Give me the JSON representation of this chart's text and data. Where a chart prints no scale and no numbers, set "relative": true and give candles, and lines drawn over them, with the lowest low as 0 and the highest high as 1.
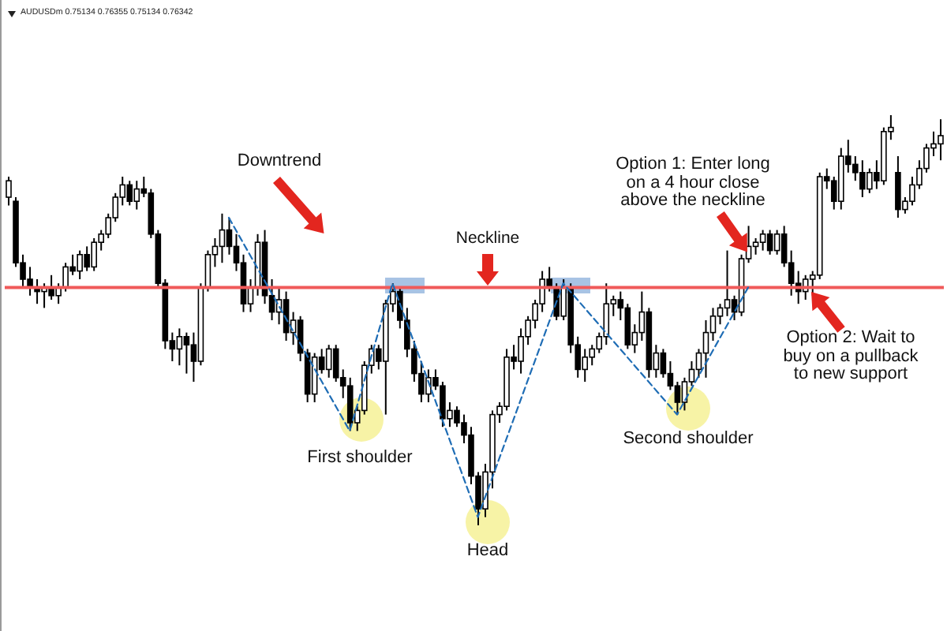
{
  "chart_data": {
    "type": "candlestick",
    "title": "AUDUSDm 0.75134 0.76355 0.75134 0.76342",
    "relative": true,
    "color": "#000000",
    "categories": [
      null,
      null,
      null,
      null,
      null,
      null,
      null,
      null,
      null,
      null,
      null,
      null,
      null,
      null,
      null,
      null,
      null,
      null,
      null,
      null,
      null,
      null,
      null,
      null,
      null,
      null,
      null,
      null,
      null,
      null,
      null,
      null,
      null,
      null,
      null,
      null,
      null,
      null,
      null,
      null,
      null,
      null,
      null,
      null,
      null,
      null,
      null,
      null,
      null,
      null,
      null,
      null,
      null,
      null,
      null,
      null,
      null,
      null,
      null,
      null,
      null,
      null,
      null,
      null,
      null,
      null,
      null,
      null,
      null,
      null,
      null,
      null,
      null,
      null,
      null,
      null,
      null,
      null,
      null,
      null,
      null,
      null,
      null,
      null,
      null,
      null,
      null,
      null,
      null,
      null,
      null,
      null,
      null,
      null,
      null,
      null,
      null,
      null,
      null,
      null,
      null,
      null,
      null,
      null,
      null,
      null,
      null,
      null,
      null,
      null,
      null,
      null,
      null,
      null,
      null,
      null,
      null,
      null,
      null,
      null,
      null,
      null,
      null,
      null,
      null,
      null,
      null,
      null,
      null,
      null,
      null,
      null
    ],
    "ohlc": [
      [
        0.8,
        0.85,
        0.78,
        0.84
      ],
      [
        0.79,
        0.8,
        0.63,
        0.64
      ],
      [
        0.64,
        0.66,
        0.58,
        0.6
      ],
      [
        0.6,
        0.63,
        0.56,
        0.58
      ],
      [
        0.58,
        0.6,
        0.54,
        0.57
      ],
      [
        0.57,
        0.59,
        0.53,
        0.58
      ],
      [
        0.58,
        0.61,
        0.55,
        0.56
      ],
      [
        0.56,
        0.59,
        0.54,
        0.58
      ],
      [
        0.58,
        0.64,
        0.57,
        0.63
      ],
      [
        0.63,
        0.66,
        0.61,
        0.62
      ],
      [
        0.62,
        0.67,
        0.6,
        0.66
      ],
      [
        0.66,
        0.68,
        0.62,
        0.63
      ],
      [
        0.63,
        0.7,
        0.62,
        0.69
      ],
      [
        0.69,
        0.72,
        0.67,
        0.71
      ],
      [
        0.71,
        0.76,
        0.7,
        0.75
      ],
      [
        0.75,
        0.81,
        0.74,
        0.8
      ],
      [
        0.8,
        0.85,
        0.78,
        0.83
      ],
      [
        0.83,
        0.84,
        0.78,
        0.79
      ],
      [
        0.79,
        0.84,
        0.77,
        0.82
      ],
      [
        0.82,
        0.85,
        0.8,
        0.81
      ],
      [
        0.81,
        0.82,
        0.7,
        0.71
      ],
      [
        0.71,
        0.72,
        0.58,
        0.59
      ],
      [
        0.59,
        0.6,
        0.43,
        0.45
      ],
      [
        0.45,
        0.47,
        0.4,
        0.43
      ],
      [
        0.43,
        0.48,
        0.39,
        0.46
      ],
      [
        0.46,
        0.47,
        0.37,
        0.44
      ],
      [
        0.44,
        0.47,
        0.35,
        0.4
      ],
      [
        0.4,
        0.59,
        0.39,
        0.58
      ],
      [
        0.58,
        0.67,
        0.57,
        0.66
      ],
      [
        0.66,
        0.7,
        0.63,
        0.68
      ],
      [
        0.68,
        0.76,
        0.64,
        0.72
      ],
      [
        0.72,
        0.75,
        0.66,
        0.68
      ],
      [
        0.68,
        0.71,
        0.62,
        0.64
      ],
      [
        0.64,
        0.66,
        0.52,
        0.54
      ],
      [
        0.54,
        0.6,
        0.52,
        0.58
      ],
      [
        0.58,
        0.71,
        0.56,
        0.69
      ],
      [
        0.69,
        0.72,
        0.54,
        0.56
      ],
      [
        0.56,
        0.6,
        0.5,
        0.52
      ],
      [
        0.52,
        0.58,
        0.49,
        0.55
      ],
      [
        0.55,
        0.57,
        0.45,
        0.47
      ],
      [
        0.47,
        0.52,
        0.44,
        0.5
      ],
      [
        0.5,
        0.51,
        0.4,
        0.42
      ],
      [
        0.42,
        0.43,
        0.3,
        0.32
      ],
      [
        0.32,
        0.42,
        0.3,
        0.41
      ],
      [
        0.41,
        0.43,
        0.37,
        0.38
      ],
      [
        0.38,
        0.44,
        0.36,
        0.43
      ],
      [
        0.43,
        0.44,
        0.35,
        0.36
      ],
      [
        0.36,
        0.38,
        0.31,
        0.34
      ],
      [
        0.34,
        0.36,
        0.23,
        0.25
      ],
      [
        0.25,
        0.29,
        0.23,
        0.28
      ],
      [
        0.28,
        0.4,
        0.27,
        0.39
      ],
      [
        0.39,
        0.44,
        0.37,
        0.43
      ],
      [
        0.43,
        0.44,
        0.38,
        0.4
      ],
      [
        0.4,
        0.55,
        0.27,
        0.54
      ],
      [
        0.54,
        0.59,
        0.52,
        0.57
      ],
      [
        0.57,
        0.58,
        0.48,
        0.5
      ],
      [
        0.5,
        0.53,
        0.41,
        0.43
      ],
      [
        0.43,
        0.45,
        0.35,
        0.37
      ],
      [
        0.37,
        0.4,
        0.3,
        0.32
      ],
      [
        0.32,
        0.38,
        0.3,
        0.36
      ],
      [
        0.36,
        0.38,
        0.33,
        0.34
      ],
      [
        0.34,
        0.35,
        0.24,
        0.26
      ],
      [
        0.26,
        0.3,
        0.24,
        0.28
      ],
      [
        0.28,
        0.29,
        0.24,
        0.25
      ],
      [
        0.25,
        0.27,
        0.2,
        0.22
      ],
      [
        0.22,
        0.24,
        0.1,
        0.12
      ],
      [
        0.12,
        0.13,
        0.0,
        0.04
      ],
      [
        0.04,
        0.15,
        0.02,
        0.13
      ],
      [
        0.13,
        0.28,
        0.09,
        0.27
      ],
      [
        0.27,
        0.3,
        0.25,
        0.29
      ],
      [
        0.29,
        0.43,
        0.28,
        0.41
      ],
      [
        0.41,
        0.44,
        0.38,
        0.4
      ],
      [
        0.4,
        0.48,
        0.37,
        0.46
      ],
      [
        0.46,
        0.51,
        0.44,
        0.5
      ],
      [
        0.5,
        0.55,
        0.48,
        0.54
      ],
      [
        0.54,
        0.62,
        0.52,
        0.6
      ],
      [
        0.6,
        0.63,
        0.57,
        0.58
      ],
      [
        0.58,
        0.59,
        0.5,
        0.51
      ],
      [
        0.51,
        0.6,
        0.5,
        0.58
      ],
      [
        0.58,
        0.59,
        0.42,
        0.44
      ],
      [
        0.44,
        0.46,
        0.36,
        0.38
      ],
      [
        0.38,
        0.43,
        0.35,
        0.41
      ],
      [
        0.41,
        0.44,
        0.39,
        0.43
      ],
      [
        0.43,
        0.47,
        0.42,
        0.46
      ],
      [
        0.46,
        0.59,
        0.44,
        0.54
      ],
      [
        0.54,
        0.56,
        0.51,
        0.55
      ],
      [
        0.55,
        0.57,
        0.5,
        0.53
      ],
      [
        0.53,
        0.54,
        0.43,
        0.44
      ],
      [
        0.44,
        0.49,
        0.42,
        0.47
      ],
      [
        0.47,
        0.57,
        0.45,
        0.52
      ],
      [
        0.52,
        0.53,
        0.36,
        0.38
      ],
      [
        0.38,
        0.44,
        0.36,
        0.42
      ],
      [
        0.42,
        0.43,
        0.36,
        0.37
      ],
      [
        0.37,
        0.4,
        0.33,
        0.34
      ],
      [
        0.34,
        0.35,
        0.27,
        0.3
      ],
      [
        0.3,
        0.36,
        0.28,
        0.35
      ],
      [
        0.35,
        0.4,
        0.34,
        0.38
      ],
      [
        0.38,
        0.43,
        0.36,
        0.42
      ],
      [
        0.42,
        0.5,
        0.36,
        0.47
      ],
      [
        0.47,
        0.53,
        0.45,
        0.51
      ],
      [
        0.51,
        0.54,
        0.49,
        0.53
      ],
      [
        0.53,
        0.67,
        0.51,
        0.55
      ],
      [
        0.55,
        0.56,
        0.5,
        0.52
      ],
      [
        0.52,
        0.66,
        0.51,
        0.65
      ],
      [
        0.65,
        0.73,
        0.64,
        0.68
      ],
      [
        0.68,
        0.7,
        0.66,
        0.69
      ],
      [
        0.69,
        0.72,
        0.67,
        0.71
      ],
      [
        0.71,
        0.72,
        0.66,
        0.67
      ],
      [
        0.67,
        0.72,
        0.66,
        0.71
      ],
      [
        0.71,
        0.73,
        0.63,
        0.64
      ],
      [
        0.64,
        0.67,
        0.56,
        0.59
      ],
      [
        0.59,
        0.62,
        0.54,
        0.57
      ],
      [
        0.57,
        0.61,
        0.55,
        0.6
      ],
      [
        0.6,
        0.62,
        0.56,
        0.61
      ],
      [
        0.61,
        0.86,
        0.6,
        0.85
      ],
      [
        0.85,
        0.87,
        0.82,
        0.84
      ],
      [
        0.84,
        0.85,
        0.77,
        0.79
      ],
      [
        0.79,
        0.92,
        0.77,
        0.9
      ],
      [
        0.9,
        0.94,
        0.86,
        0.88
      ],
      [
        0.88,
        0.9,
        0.84,
        0.86
      ],
      [
        0.86,
        0.89,
        0.8,
        0.82
      ],
      [
        0.82,
        0.87,
        0.81,
        0.86
      ],
      [
        0.86,
        0.89,
        0.82,
        0.84
      ],
      [
        0.84,
        0.97,
        0.83,
        0.96
      ],
      [
        0.96,
        1.0,
        0.94,
        0.97
      ],
      [
        0.86,
        0.9,
        0.75,
        0.77
      ],
      [
        0.77,
        0.8,
        0.76,
        0.79
      ],
      [
        0.79,
        0.85,
        0.78,
        0.83
      ],
      [
        0.83,
        0.89,
        0.82,
        0.87
      ],
      [
        0.87,
        0.93,
        0.86,
        0.92
      ],
      [
        0.92,
        0.96,
        0.9,
        0.93
      ],
      [
        0.93,
        0.99,
        0.89,
        0.95
      ]
    ],
    "series": [
      {
        "type": "line",
        "color": "#1f6db5",
        "line_style": "dashed",
        "values": [
          null,
          null,
          null,
          null,
          null,
          null,
          null,
          null,
          null,
          null,
          null,
          null,
          null,
          null,
          null,
          null,
          null,
          null,
          null,
          null,
          null,
          null,
          null,
          null,
          null,
          null,
          null,
          null,
          null,
          null,
          null,
          0.75,
          null,
          null,
          null,
          null,
          null,
          null,
          null,
          null,
          null,
          null,
          null,
          null,
          null,
          null,
          null,
          null,
          0.23,
          null,
          null,
          null,
          null,
          null,
          0.59,
          null,
          null,
          null,
          null,
          null,
          null,
          null,
          null,
          null,
          null,
          null,
          0.02,
          null,
          null,
          null,
          null,
          null,
          null,
          null,
          null,
          null,
          null,
          null,
          0.59,
          null,
          null,
          null,
          null,
          null,
          null,
          null,
          null,
          null,
          null,
          null,
          null,
          null,
          null,
          null,
          0.27,
          null,
          null,
          null,
          null,
          null,
          null,
          null,
          null,
          null,
          0.58,
          null,
          null,
          null,
          null,
          null,
          null,
          null,
          null,
          null,
          null,
          null,
          null,
          null,
          null,
          null,
          null,
          null,
          null,
          null,
          null,
          null,
          null,
          null,
          null,
          null,
          null,
          null
        ]
      }
    ],
    "ref_lines": [
      {
        "axis": "y",
        "value": 0.58,
        "label": "Neckline",
        "color": "#f05a5a"
      }
    ],
    "annotations": [
      "Downtrend",
      "First shoulder",
      "Head",
      "Second shoulder",
      "Option 1: Enter long on a 4 hour close above the neckline",
      "Option 2: Wait to buy on a pullback to new support"
    ]
  }
}
